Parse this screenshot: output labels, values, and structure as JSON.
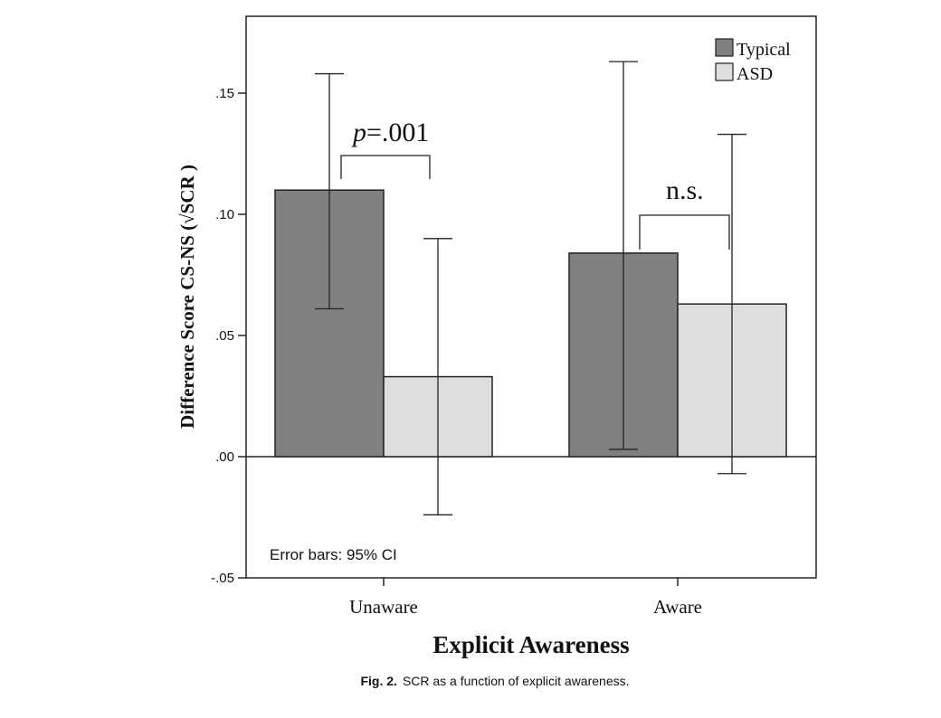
{
  "chart_data": {
    "type": "bar",
    "categories": [
      "Unaware",
      "Aware"
    ],
    "series": [
      {
        "name": "Typical",
        "values": [
          0.11,
          0.084
        ],
        "ci_low": [
          0.061,
          0.003
        ],
        "ci_high": [
          0.158,
          0.163
        ],
        "color": "#808080"
      },
      {
        "name": "ASD",
        "values": [
          0.033,
          0.063
        ],
        "ci_low": [
          -0.024,
          -0.007
        ],
        "ci_high": [
          0.09,
          0.133
        ],
        "color": "#dedede"
      }
    ],
    "xlabel": "Explicit Awareness",
    "ylabel": "Difference Score CS-NS (√SCR )",
    "ylim": [
      -0.05,
      0.18
    ],
    "yticks": [
      -0.05,
      0.0,
      0.05,
      0.1,
      0.15
    ],
    "ytick_labels": [
      "-.05",
      ".00",
      ".05",
      ".10",
      ".15"
    ],
    "legend_position": "top-right",
    "annotations": {
      "unaware_sig_prefix": "p",
      "unaware_sig_value": "=.001",
      "aware_sig": "n.s.",
      "error_bar_note": "Error bars: 95% CI"
    }
  },
  "caption": {
    "label": "Fig. 2.",
    "text": "SCR as a function of explicit awareness."
  }
}
